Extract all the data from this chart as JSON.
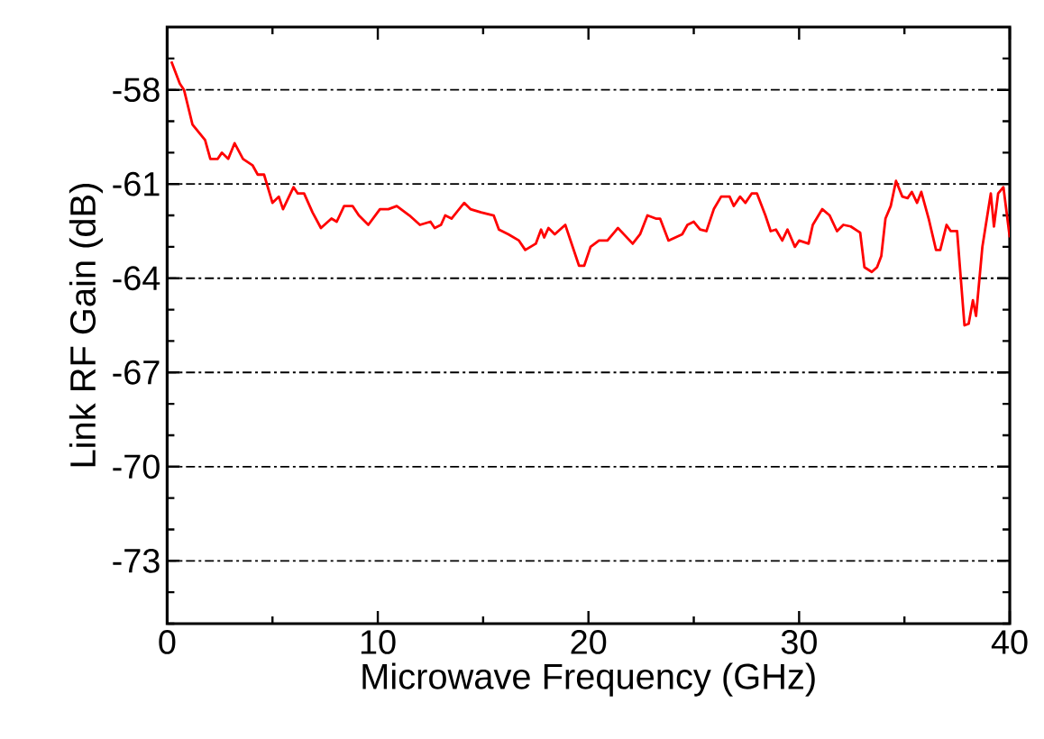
{
  "chart_data": {
    "type": "line",
    "xlabel": "Microwave Frequency (GHz)",
    "ylabel": "Link RF Gain (dB)",
    "xlim": [
      0,
      40
    ],
    "ylim": [
      -75,
      -56
    ],
    "xticks": [
      0,
      {
        "value": 5,
        "label": null
      },
      10,
      {
        "value": 15,
        "label": null
      },
      20,
      {
        "value": 25,
        "label": null
      },
      30,
      {
        "value": 35,
        "label": null
      },
      40
    ],
    "yticks": [
      {
        "value": -75,
        "label": null
      },
      {
        "value": -74,
        "label": null
      },
      -73,
      {
        "value": -72,
        "label": null
      },
      {
        "value": -71,
        "label": null
      },
      -70,
      {
        "value": -69,
        "label": null
      },
      {
        "value": -68,
        "label": null
      },
      -67,
      {
        "value": -66,
        "label": null
      },
      {
        "value": -65,
        "label": null
      },
      -64,
      {
        "value": -63,
        "label": null
      },
      {
        "value": -62,
        "label": null
      },
      -61,
      {
        "value": -60,
        "label": null
      },
      {
        "value": -59,
        "label": null
      },
      -58,
      {
        "value": -57,
        "label": null
      }
    ],
    "grid": "y",
    "marker": "none",
    "line_style": "solid",
    "series": [
      {
        "color": "#ff0000",
        "x": [
          0.2,
          0.6,
          0.8,
          1.2,
          1.8,
          2.05,
          2.4,
          2.6,
          2.9,
          3.2,
          3.6,
          4.05,
          4.3,
          4.6,
          5.0,
          5.3,
          5.5,
          6.0,
          6.2,
          6.5,
          6.9,
          7.3,
          7.8,
          8.05,
          8.4,
          8.8,
          9.1,
          9.55,
          10.1,
          10.5,
          10.9,
          11.5,
          12.0,
          12.5,
          12.7,
          13.0,
          13.2,
          13.5,
          14.1,
          14.4,
          14.9,
          15.5,
          15.75,
          16.2,
          16.7,
          17.0,
          17.5,
          17.75,
          17.9,
          18.1,
          18.4,
          18.9,
          19.55,
          19.8,
          20.1,
          20.5,
          20.9,
          21.4,
          22.1,
          22.45,
          22.8,
          23.2,
          23.4,
          23.8,
          24.45,
          24.7,
          25.0,
          25.3,
          25.6,
          25.95,
          26.3,
          26.7,
          26.9,
          27.2,
          27.45,
          27.75,
          28.0,
          28.4,
          28.65,
          28.9,
          29.2,
          29.45,
          29.8,
          30.0,
          30.45,
          30.65,
          31.1,
          31.45,
          31.8,
          32.1,
          32.45,
          32.9,
          33.1,
          33.45,
          33.7,
          33.9,
          34.1,
          34.35,
          34.6,
          34.9,
          35.15,
          35.35,
          35.6,
          35.8,
          36.15,
          36.5,
          36.7,
          37.0,
          37.2,
          37.5,
          37.85,
          38.05,
          38.25,
          38.4,
          38.7,
          39.1,
          39.25,
          39.45,
          39.7,
          40.0
        ],
        "values": [
          -57.1,
          -57.8,
          -58.0,
          -59.1,
          -59.6,
          -60.2,
          -60.2,
          -60.0,
          -60.2,
          -59.7,
          -60.2,
          -60.4,
          -60.7,
          -60.7,
          -61.6,
          -61.4,
          -61.8,
          -61.1,
          -61.3,
          -61.3,
          -61.9,
          -62.4,
          -62.1,
          -62.2,
          -61.7,
          -61.7,
          -62.0,
          -62.3,
          -61.8,
          -61.8,
          -61.7,
          -62.0,
          -62.3,
          -62.2,
          -62.4,
          -62.3,
          -62.0,
          -62.1,
          -61.6,
          -61.8,
          -61.9,
          -62.0,
          -62.45,
          -62.6,
          -62.8,
          -63.1,
          -62.9,
          -62.45,
          -62.7,
          -62.4,
          -62.6,
          -62.3,
          -63.6,
          -63.6,
          -63.0,
          -62.8,
          -62.8,
          -62.4,
          -62.9,
          -62.6,
          -62.0,
          -62.1,
          -62.1,
          -62.8,
          -62.6,
          -62.3,
          -62.2,
          -62.45,
          -62.5,
          -61.8,
          -61.4,
          -61.4,
          -61.7,
          -61.4,
          -61.6,
          -61.3,
          -61.3,
          -62.0,
          -62.5,
          -62.45,
          -62.8,
          -62.45,
          -63.0,
          -62.8,
          -62.9,
          -62.3,
          -61.8,
          -62.0,
          -62.5,
          -62.3,
          -62.35,
          -62.55,
          -63.65,
          -63.8,
          -63.65,
          -63.3,
          -62.1,
          -61.7,
          -60.9,
          -61.4,
          -61.45,
          -61.25,
          -61.6,
          -61.25,
          -62.1,
          -63.1,
          -63.1,
          -62.3,
          -62.5,
          -62.5,
          -65.5,
          -65.45,
          -64.7,
          -65.2,
          -63.0,
          -61.3,
          -62.35,
          -61.3,
          -61.1,
          -62.7
        ]
      }
    ]
  }
}
